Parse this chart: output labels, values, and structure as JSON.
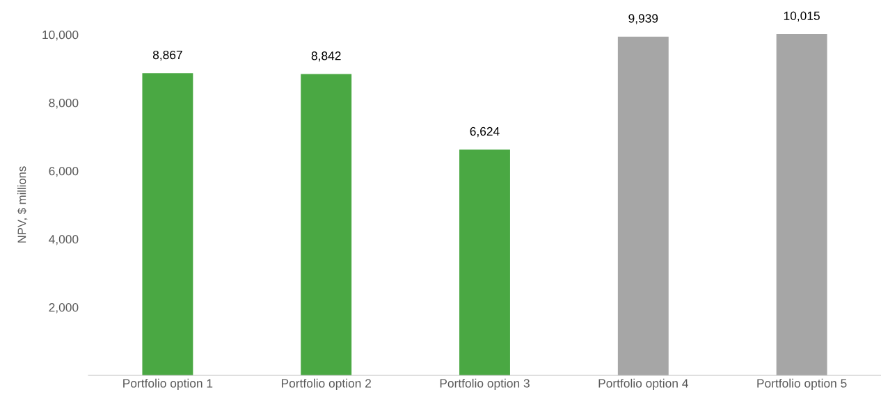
{
  "chart_data": {
    "type": "bar",
    "ylabel": "NPV, $ millions",
    "categories": [
      "Portfolio option 1",
      "Portfolio option 2",
      "Portfolio option 3",
      "Portfolio option 4",
      "Portfolio option 5"
    ],
    "values": [
      8867,
      8842,
      6624,
      9939,
      10015
    ],
    "colors": [
      "#4aa843",
      "#4aa843",
      "#4aa843",
      "#a6a6a6",
      "#a6a6a6"
    ],
    "value_labels": [
      "8,867",
      "8,842",
      "6,624",
      "9,939",
      "10,015"
    ],
    "ylim": [
      0,
      10015
    ],
    "yticks": [
      {
        "value": 2000,
        "label": "2,000"
      },
      {
        "value": 4000,
        "label": "4,000"
      },
      {
        "value": 6000,
        "label": "6,000"
      },
      {
        "value": 8000,
        "label": "8,000"
      },
      {
        "value": 10000,
        "label": "10,000"
      }
    ],
    "grid": false,
    "legend": false
  }
}
